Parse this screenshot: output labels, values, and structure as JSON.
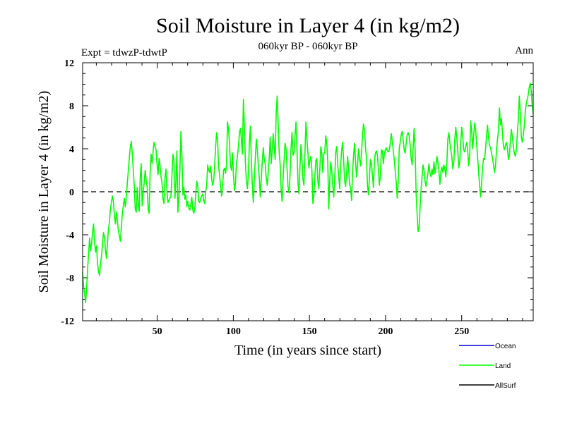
{
  "chart_data": {
    "type": "line",
    "title": "Soil Moisture in Layer 4 (in kg/m2)",
    "subtitle": "060kyr BP - 060kyr BP",
    "experiment_label": "Expt = tdwzP-tdwtP",
    "period_label": "Ann",
    "xlabel": "Time (in years since start)",
    "ylabel": "Soil Moisture in Layer 4 (in kg/m2)",
    "xlim": [
      1,
      297
    ],
    "ylim": [
      -12,
      12
    ],
    "x_ticks": [
      50,
      100,
      150,
      200,
      250
    ],
    "y_ticks": [
      -12,
      -8,
      -4,
      0,
      4,
      8,
      12
    ],
    "zero_line": "dashed",
    "grid": false,
    "legend_position": "bottom-right",
    "legend": [
      {
        "name": "Ocean",
        "color": "#0000cc"
      },
      {
        "name": "Land",
        "color": "#00ff00"
      },
      {
        "name": "AllSurf",
        "color": "#000000"
      }
    ],
    "series": [
      {
        "name": "Land",
        "color": "#00ff00",
        "x_start": 1,
        "x_step": 1,
        "values": [
          -7.5,
          -8.8,
          -9.5,
          -10.3,
          -9.0,
          -7.2,
          -5.8,
          -4.3,
          -5.5,
          -4.8,
          -3.8,
          -3.0,
          -4.6,
          -5.6,
          -5.0,
          -6.6,
          -7.4,
          -7.8,
          -6.7,
          -6.0,
          -4.9,
          -3.8,
          -4.2,
          -5.4,
          -6.2,
          -4.8,
          -3.5,
          -2.8,
          -1.6,
          -1.0,
          -0.4,
          -0.9,
          -2.1,
          -3.0,
          -1.9,
          -2.7,
          -3.6,
          -4.1,
          -4.6,
          -3.4,
          -2.0,
          -1.3,
          -0.6,
          -1.4,
          -0.5,
          0.8,
          1.9,
          3.1,
          4.1,
          4.7,
          3.6,
          2.1,
          0.6,
          -1.6,
          -1.9,
          0.4,
          -1.2,
          -1.8,
          1.3,
          2.6,
          -1.3,
          0.0,
          0.8,
          2.0,
          1.1,
          0.5,
          -1.6,
          -2.0,
          1.8,
          3.5,
          2.6,
          3.8,
          4.6,
          4.2,
          3.9,
          2.5,
          1.6,
          3.1,
          2.4,
          1.4,
          0.8,
          -0.7,
          -1.1,
          1.3,
          2.1,
          0.0,
          -1.0,
          -0.8,
          -0.6,
          -0.4,
          1.5,
          3.5,
          2.9,
          -0.6,
          1.0,
          3.8,
          -1.9,
          -0.6,
          2.0,
          5.6,
          3.4,
          -0.3,
          0.4,
          -0.7,
          -0.3,
          -1.4,
          -0.9,
          -1.5,
          -1.7,
          -1.2,
          -0.5,
          -1.7,
          -2.0,
          -1.6,
          -0.2,
          1.0,
          0.5,
          -0.9,
          -1.0,
          -0.6,
          -0.4,
          -0.2,
          -0.8,
          -1.1,
          0.0,
          0.6,
          2.5,
          2.0,
          1.8,
          2.4,
          1.2,
          0.6,
          1.0,
          2.4,
          4.2,
          5.5,
          4.8,
          2.3,
          1.6,
          0.5,
          -0.4,
          0.6,
          2.0,
          2.2,
          1.7,
          2.5,
          6.5,
          5.8,
          4.5,
          2.4,
          2.0,
          3.6,
          1.5,
          0.1,
          0.8,
          2.7,
          3.3,
          4.2,
          5.5,
          5.9,
          4.8,
          3.5,
          8.6,
          6.0,
          2.7,
          1.0,
          0.3,
          1.6,
          4.5,
          6.1,
          2.9,
          0.6,
          -1.0,
          1.2,
          3.1,
          4.9,
          3.9,
          2.5,
          1.3,
          -0.5,
          1.2,
          2.8,
          4.1,
          3.0,
          2.6,
          1.3,
          0.6,
          1.8,
          3.1,
          5.1,
          2.6,
          3.8,
          5.4,
          4.2,
          3.0,
          7.3,
          8.9,
          6.4,
          3.7,
          2.6,
          0.2,
          -0.9,
          1.3,
          3.0,
          4.5,
          4.0,
          2.1,
          0.4,
          -0.1,
          1.6,
          4.1,
          5.5,
          3.4,
          3.6,
          5.2,
          6.5,
          3.8,
          0.8,
          -0.2,
          2.4,
          4.4,
          3.0,
          1.1,
          0.6,
          3.6,
          6.5,
          4.9,
          3.6,
          2.2,
          2.9,
          3.3,
          2.0,
          -1.1,
          -0.3,
          1.5,
          2.9,
          3.1,
          1.0,
          0.3,
          2.1,
          4.2,
          3.6,
          1.8,
          3.5,
          3.7,
          5.2,
          4.5,
          2.8,
          -1.6,
          1.1,
          2.8,
          2.0,
          0.7,
          -0.5,
          1.2,
          3.7,
          4.2,
          2.5,
          1.5,
          0.3,
          2.6,
          3.9,
          4.6,
          2.9,
          1.0,
          0.5,
          1.8,
          3.3,
          2.1,
          0.8,
          0.3,
          -0.8,
          1.9,
          3.4,
          4.5,
          2.8,
          1.4,
          2.4,
          4.0,
          3.1,
          2.4,
          3.6,
          5.3,
          6.3,
          5.7,
          4.1,
          3.2,
          0.6,
          -0.3,
          1.3,
          3.0,
          2.6,
          1.6,
          0.4,
          2.8,
          3.6,
          3.8,
          3.4,
          2.1,
          0.6,
          1.5,
          3.9,
          3.8,
          2.6,
          3.5,
          3.9,
          4.1,
          3.8,
          3.7,
          3.9,
          4.5,
          5.4,
          4.7,
          3.8,
          3.0,
          1.9,
          0.8,
          -0.6,
          1.0,
          4.0,
          4.6,
          5.3,
          5.6,
          4.8,
          3.9,
          3.6,
          4.5,
          5.3,
          5.5,
          5.2,
          4.4,
          3.1,
          2.5,
          4.1,
          5.9,
          4.0,
          -0.1,
          -2.0,
          -3.7,
          -3.3,
          -1.5,
          0.2,
          1.4,
          2.5,
          2.0,
          1.0,
          0.5,
          1.1,
          1.8,
          2.6,
          1.7,
          1.4,
          2.1,
          1.6,
          2.8,
          1.7,
          2.4,
          3.3,
          2.7,
          1.9,
          0.7,
          1.9,
          2.3,
          1.8,
          2.5,
          2.1,
          1.4,
          2.7,
          4.9,
          5.5,
          4.6,
          3.9,
          3.3,
          2.1,
          2.8,
          4.9,
          6.0,
          5.0,
          3.9,
          2.2,
          2.8,
          4.6,
          6.0,
          5.1,
          3.9,
          3.7,
          4.2,
          4.6,
          3.8,
          2.4,
          3.5,
          6.6,
          5.6,
          4.0,
          5.2,
          6.4,
          5.8,
          4.4,
          3.2,
          1.8,
          0.6,
          -0.5,
          0.8,
          2.3,
          3.1,
          3.0,
          4.0,
          5.2,
          6.2,
          5.0,
          4.3,
          4.1,
          3.6,
          3.1,
          2.5,
          1.8,
          2.4,
          3.8,
          4.9,
          5.7,
          7.8,
          6.2,
          6.8,
          5.5,
          4.2,
          3.9,
          4.3,
          4.6,
          4.1,
          3.0,
          3.4,
          4.7,
          5.8,
          5.1,
          4.2,
          3.6,
          3.3,
          3.9,
          5.4,
          6.8,
          8.9,
          7.3,
          5.1,
          4.6,
          5.3,
          6.1,
          7.4,
          8.2,
          8.6,
          9.0,
          9.7,
          10.1,
          9.4,
          8.0,
          7.2
        ]
      }
    ]
  }
}
